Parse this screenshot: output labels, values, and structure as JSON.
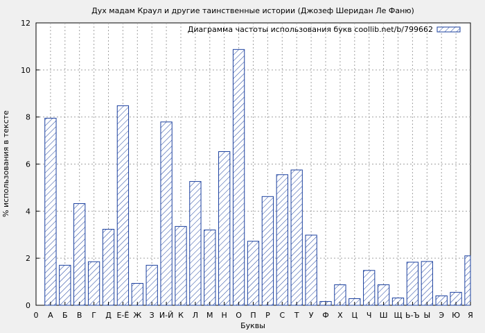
{
  "chart_data": {
    "type": "bar",
    "title": "Дух мадам Краул и другие таинственные истории (Джозеф Шеридан Ле Фаню)",
    "xlabel": "Буквы",
    "ylabel": "% использования в тексте",
    "ylim": [
      0,
      12
    ],
    "yticks": [
      "0",
      "2",
      "4",
      "6",
      "8",
      "10",
      "12"
    ],
    "x_start_label": "0",
    "categories": [
      "А",
      "Б",
      "В",
      "Г",
      "Д",
      "Е-Ё",
      "Ж",
      "З",
      "И-Й",
      "К",
      "Л",
      "М",
      "Н",
      "О",
      "П",
      "Р",
      "С",
      "Т",
      "У",
      "Ф",
      "Х",
      "Ц",
      "Ч",
      "Ш",
      "Щ",
      "Ь-Ъ",
      "Ы",
      "Э",
      "Ю",
      "Я"
    ],
    "series": [
      {
        "name": "Диаграмма частоты использования букв coollib.net/b/799662",
        "values": [
          7.95,
          1.7,
          4.32,
          1.85,
          3.23,
          8.48,
          0.93,
          1.7,
          7.79,
          3.35,
          5.26,
          3.2,
          6.53,
          10.87,
          2.72,
          4.62,
          5.55,
          5.75,
          2.98,
          0.16,
          0.87,
          0.28,
          1.48,
          0.87,
          0.31,
          1.83,
          1.86,
          0.4,
          0.55,
          2.1
        ]
      }
    ],
    "grid": true,
    "legend_position": "top-right",
    "colors": {
      "bar_stroke": "#1a3f9e",
      "hatch": "#1a3f9e",
      "background": "#f0f0f0",
      "plot_bg": "#ffffff"
    }
  }
}
